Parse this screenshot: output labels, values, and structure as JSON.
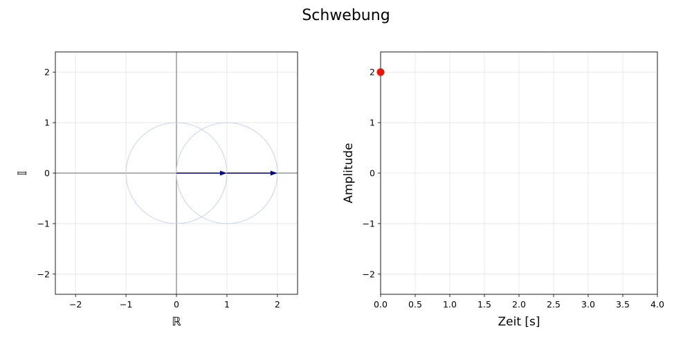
{
  "figure": {
    "title": "Schwebung"
  },
  "chart_data": [
    {
      "type": "scatter",
      "subtype": "phasor-diagram",
      "xlabel": "ℝ",
      "ylabel": "𝕀",
      "xlim": [
        -2.4,
        2.4
      ],
      "ylim": [
        -2.4,
        2.4
      ],
      "xticks": [
        -2,
        -1,
        0,
        1,
        2
      ],
      "yticks": [
        -2,
        -1,
        0,
        1,
        2
      ],
      "xtick_labels": [
        "−2",
        "−1",
        "0",
        "1",
        "2"
      ],
      "ytick_labels": [
        "−2",
        "−1",
        "0",
        "1",
        "2"
      ],
      "grid": true,
      "circles": [
        {
          "center": [
            0,
            0
          ],
          "radius": 1
        },
        {
          "center": [
            1,
            0
          ],
          "radius": 1
        }
      ],
      "arrows": [
        {
          "from": [
            0,
            0
          ],
          "to": [
            1,
            0
          ]
        },
        {
          "from": [
            1,
            0
          ],
          "to": [
            2,
            0
          ]
        }
      ],
      "colors": {
        "arrow": "#00008b",
        "circle": "#c6d2ee",
        "axis_line": "#808080",
        "grid": "#e3e3e3"
      }
    },
    {
      "type": "scatter",
      "xlabel": "Zeit [s]",
      "ylabel": "Amplitude",
      "xlim": [
        0,
        4
      ],
      "ylim": [
        -2.4,
        2.4
      ],
      "xticks": [
        0,
        0.5,
        1,
        1.5,
        2,
        2.5,
        3,
        3.5,
        4
      ],
      "yticks": [
        -2,
        -1,
        0,
        1,
        2
      ],
      "xtick_labels": [
        "0.0",
        "0.5",
        "1.0",
        "1.5",
        "2.0",
        "2.5",
        "3.0",
        "3.5",
        "4.0"
      ],
      "ytick_labels": [
        "−2",
        "−1",
        "0",
        "1",
        "2"
      ],
      "grid": true,
      "points": [
        {
          "x": 0,
          "y": 2
        }
      ],
      "colors": {
        "point": "#e8160c",
        "grid": "#e3e3e3"
      }
    }
  ]
}
